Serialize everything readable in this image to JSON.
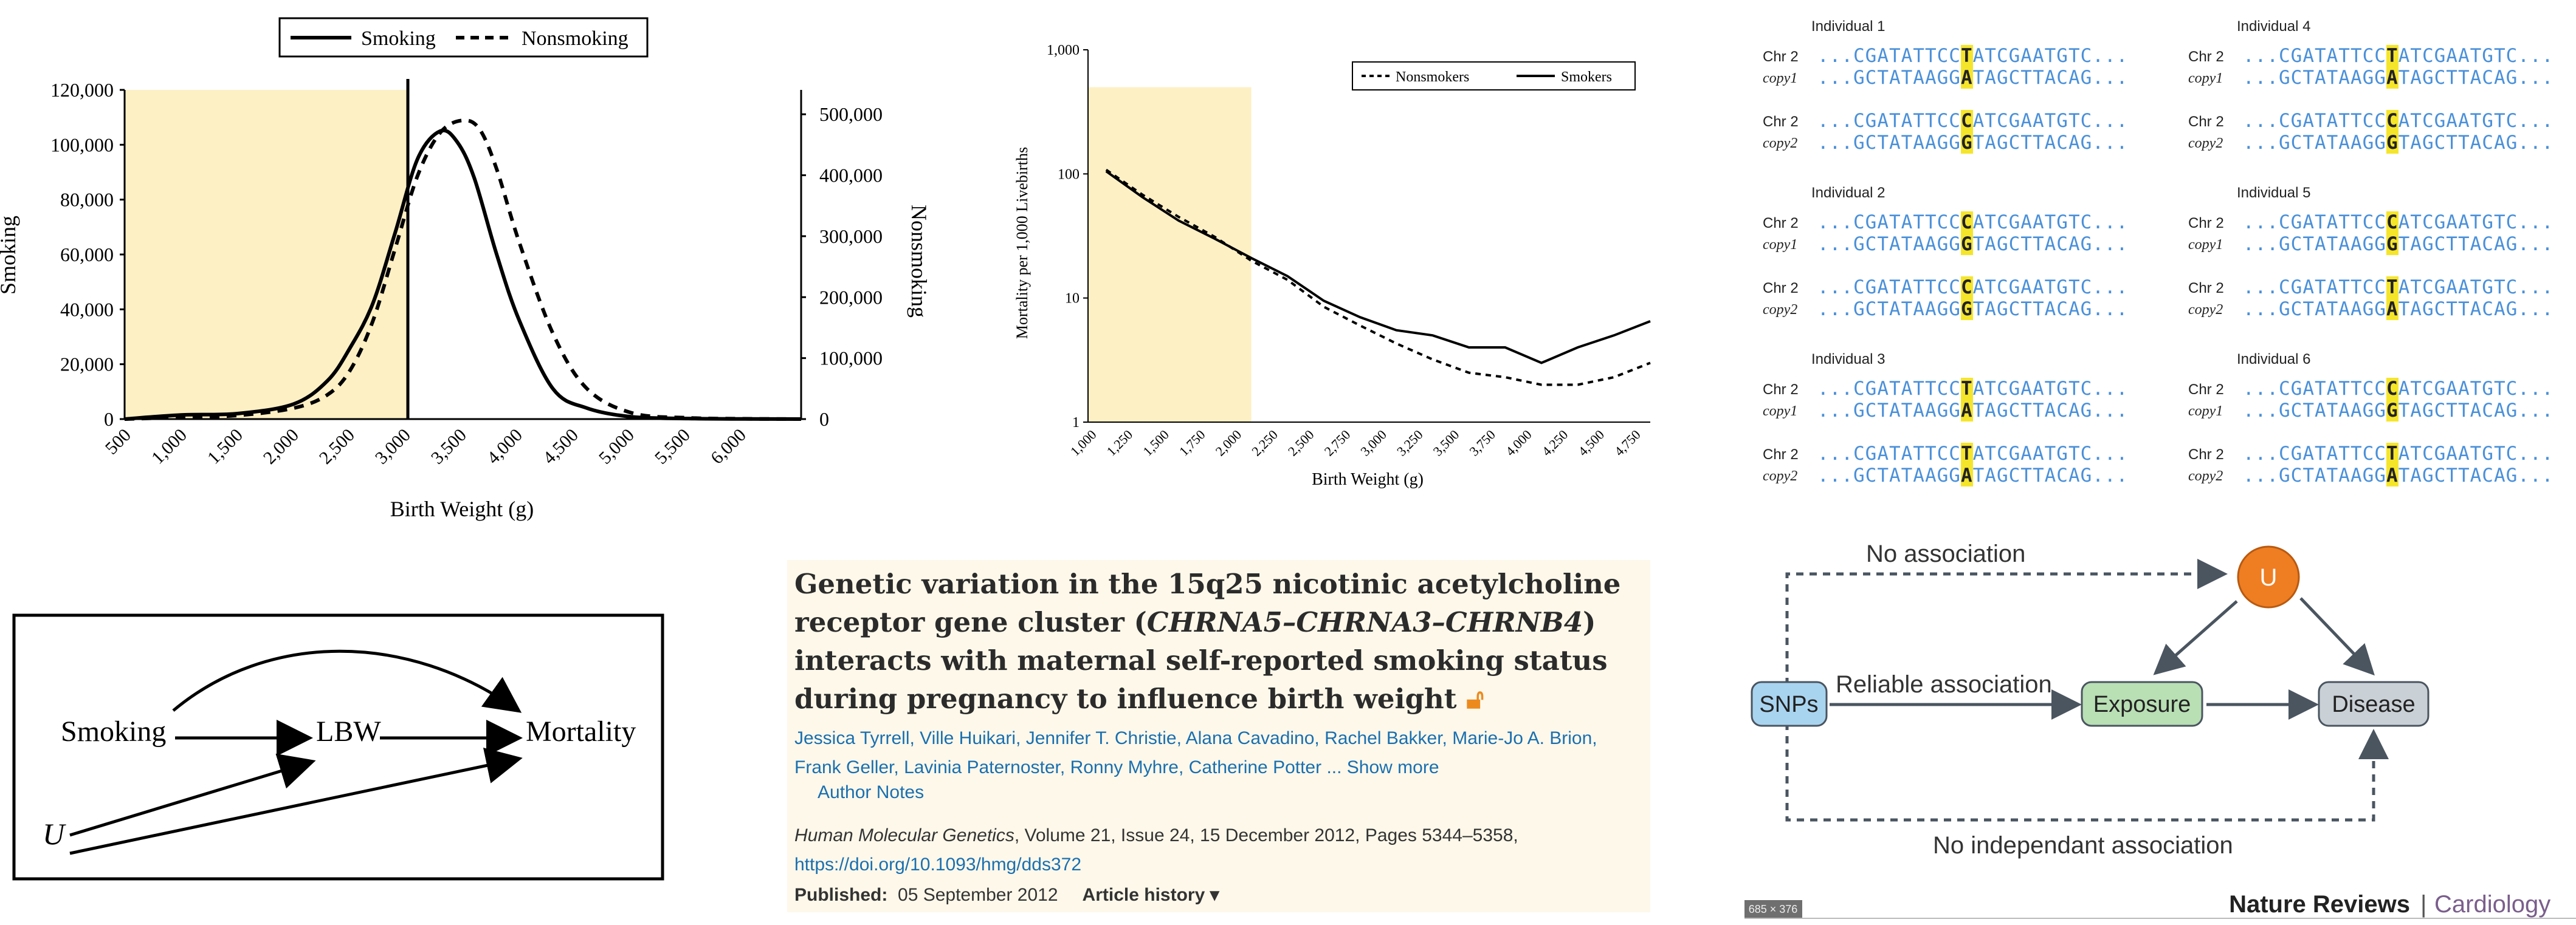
{
  "chart1": {
    "legend": [
      "Smoking",
      "Nonsmoking"
    ],
    "ylabel_left": "Smoking",
    "ylabel_right": "Nonsmoking",
    "xlabel": "Birth Weight (g)",
    "y_left_ticks": [
      "0",
      "20,000",
      "40,000",
      "60,000",
      "80,000",
      "100,000",
      "120,000"
    ],
    "y_right_ticks": [
      "0",
      "100,000",
      "200,000",
      "300,000",
      "400,000",
      "500,000"
    ],
    "x_ticks": [
      "500",
      "1,000",
      "1,500",
      "2,000",
      "2,500",
      "3,000",
      "3,500",
      "4,000",
      "4,500",
      "5,000",
      "5,500",
      "6,000"
    ]
  },
  "chart2": {
    "legend": [
      "Nonsmokers",
      "Smokers"
    ],
    "ylabel": "Mortality per 1,000 Livebirths",
    "xlabel": "Birth Weight (g)",
    "y_ticks": [
      "1",
      "10",
      "100",
      "1,000"
    ],
    "x_ticks": [
      "1,000",
      "1,250",
      "1,500",
      "1,750",
      "2,000",
      "2,250",
      "2,500",
      "2,750",
      "3,000",
      "3,250",
      "3,500",
      "3,750",
      "4,000",
      "4,250",
      "4,500",
      "4,750"
    ]
  },
  "chart_data": [
    {
      "type": "line",
      "title": "",
      "xlabel": "Birth Weight (g)",
      "ylabel": "Smoking",
      "ylabel_secondary": "Nonsmoking",
      "xlim": [
        500,
        6500
      ],
      "ylim": [
        0,
        120000
      ],
      "ylim_secondary": [
        0,
        540000
      ],
      "legend_position": "top",
      "shaded_region": [
        500,
        2500
      ],
      "vertical_line": 2500,
      "series": [
        {
          "name": "Smoking",
          "axis": "left",
          "style": "solid",
          "x": [
            500,
            1000,
            1500,
            2000,
            2300,
            2500,
            2700,
            2900,
            3100,
            3300,
            3450,
            3600,
            3800,
            4000,
            4300,
            4600,
            5000,
            5500,
            6000,
            6500
          ],
          "y": [
            0,
            1500,
            2000,
            5500,
            14000,
            26000,
            42000,
            68000,
            95000,
            105000,
            101000,
            88000,
            60000,
            36000,
            11000,
            4000,
            800,
            200,
            50,
            0
          ]
        },
        {
          "name": "Nonsmoking",
          "axis": "right",
          "style": "dashed",
          "x": [
            500,
            1000,
            1500,
            2000,
            2300,
            2500,
            2700,
            2900,
            3100,
            3300,
            3500,
            3650,
            3800,
            4000,
            4300,
            4600,
            5000,
            5500,
            6000,
            6500
          ],
          "y": [
            0,
            3000,
            6000,
            18000,
            40000,
            80000,
            160000,
            280000,
            400000,
            470000,
            490000,
            475000,
            410000,
            290000,
            140000,
            50000,
            10000,
            2000,
            500,
            0
          ]
        }
      ]
    },
    {
      "type": "line",
      "title": "",
      "xlabel": "Birth Weight (g)",
      "ylabel": "Mortality per 1,000 Livebirths",
      "y_scale": "log",
      "xlim": [
        1000,
        4875
      ],
      "ylim": [
        1,
        1000
      ],
      "legend_position": "top-right",
      "shaded_region": [
        1000,
        2000
      ],
      "series": [
        {
          "name": "Smokers",
          "style": "solid",
          "x": [
            1125,
            1375,
            1625,
            1875,
            2125,
            2375,
            2625,
            2875,
            3125,
            3375,
            3625,
            3875,
            4125,
            4375,
            4625,
            4875
          ],
          "y": [
            105,
            65,
            42,
            30,
            21,
            15,
            9.5,
            7,
            5.5,
            5,
            4,
            4,
            3,
            4,
            5,
            6.5
          ]
        },
        {
          "name": "Nonsmokers",
          "style": "dashed",
          "x": [
            1125,
            1375,
            1625,
            1875,
            2125,
            2375,
            2625,
            2875,
            3125,
            3375,
            3625,
            3875,
            4125,
            4375,
            4625,
            4875
          ],
          "y": [
            108,
            68,
            45,
            31,
            20,
            14,
            8.5,
            6,
            4.3,
            3.2,
            2.5,
            2.3,
            2,
            2,
            2.3,
            3
          ]
        }
      ]
    }
  ],
  "dna": {
    "individuals": [
      {
        "title": "Individual 1",
        "pairs": [
          {
            "chr": "Chr 2",
            "copy": "copy1",
            "top": [
              "...CGATATTCC",
              "T",
              "ATCGAATGTC..."
            ],
            "bot": [
              "...GCTATAAGG",
              "A",
              "TAGCTTACAG..."
            ]
          },
          {
            "chr": "Chr 2",
            "copy": "copy2",
            "top": [
              "...CGATATTCC",
              "C",
              "ATCGAATGTC..."
            ],
            "bot": [
              "...GCTATAAGG",
              "G",
              "TAGCTTACAG..."
            ]
          }
        ]
      },
      {
        "title": "Individual 2",
        "pairs": [
          {
            "chr": "Chr 2",
            "copy": "copy1",
            "top": [
              "...CGATATTCC",
              "C",
              "ATCGAATGTC..."
            ],
            "bot": [
              "...GCTATAAGG",
              "G",
              "TAGCTTACAG..."
            ]
          },
          {
            "chr": "Chr 2",
            "copy": "copy2",
            "top": [
              "...CGATATTCC",
              "C",
              "ATCGAATGTC..."
            ],
            "bot": [
              "...GCTATAAGG",
              "G",
              "TAGCTTACAG..."
            ]
          }
        ]
      },
      {
        "title": "Individual 3",
        "pairs": [
          {
            "chr": "Chr 2",
            "copy": "copy1",
            "top": [
              "...CGATATTCC",
              "T",
              "ATCGAATGTC..."
            ],
            "bot": [
              "...GCTATAAGG",
              "A",
              "TAGCTTACAG..."
            ]
          },
          {
            "chr": "Chr 2",
            "copy": "copy2",
            "top": [
              "...CGATATTCC",
              "T",
              "ATCGAATGTC..."
            ],
            "bot": [
              "...GCTATAAGG",
              "A",
              "TAGCTTACAG..."
            ]
          }
        ]
      },
      {
        "title": "Individual 4",
        "pairs": [
          {
            "chr": "Chr 2",
            "copy": "copy1",
            "top": [
              "...CGATATTCC",
              "T",
              "ATCGAATGTC..."
            ],
            "bot": [
              "...GCTATAAGG",
              "A",
              "TAGCTTACAG..."
            ]
          },
          {
            "chr": "Chr 2",
            "copy": "copy2",
            "top": [
              "...CGATATTCC",
              "C",
              "ATCGAATGTC..."
            ],
            "bot": [
              "...GCTATAAGG",
              "G",
              "TAGCTTACAG..."
            ]
          }
        ]
      },
      {
        "title": "Individual 5",
        "pairs": [
          {
            "chr": "Chr 2",
            "copy": "copy1",
            "top": [
              "...CGATATTCC",
              "C",
              "ATCGAATGTC..."
            ],
            "bot": [
              "...GCTATAAGG",
              "G",
              "TAGCTTACAG..."
            ]
          },
          {
            "chr": "Chr 2",
            "copy": "copy2",
            "top": [
              "...CGATATTCC",
              "T",
              "ATCGAATGTC..."
            ],
            "bot": [
              "...GCTATAAGG",
              "A",
              "TAGCTTACAG..."
            ]
          }
        ]
      },
      {
        "title": "Individual 6",
        "pairs": [
          {
            "chr": "Chr 2",
            "copy": "copy1",
            "top": [
              "...CGATATTCC",
              "C",
              "ATCGAATGTC..."
            ],
            "bot": [
              "...GCTATAAGG",
              "G",
              "TAGCTTACAG..."
            ]
          },
          {
            "chr": "Chr 2",
            "copy": "copy2",
            "top": [
              "...CGATATTCC",
              "T",
              "ATCGAATGTC..."
            ],
            "bot": [
              "...GCTATAAGG",
              "A",
              "TAGCTTACAG..."
            ]
          }
        ]
      }
    ]
  },
  "dag": {
    "smoking": "Smoking",
    "lbw": "LBW",
    "mortality": "Mortality",
    "u": "U"
  },
  "paper": {
    "title_part1": "Genetic variation in the 15q25 nicotinic acetylcholine receptor gene cluster (",
    "title_genes": "CHRNA5–CHRNA3–CHRNB4",
    "title_part2": ") interacts with maternal self-reported smoking status during pregnancy to influence birth weight",
    "open_access_icon": "open-access-icon",
    "authors": [
      "Jessica Tyrrell",
      "Ville Huikari",
      "Jennifer T. Christie",
      "Alana Cavadino",
      "Rachel Bakker",
      "Marie-Jo A. Brion",
      "Frank Geller",
      "Lavinia Paternoster",
      "Ronny Myhre",
      "Catherine Potter"
    ],
    "show_more": "... Show more",
    "author_notes": "Author Notes",
    "journal": "Human Molecular Genetics",
    "citation_rest": ", Volume 21, Issue 24, 15 December 2012, Pages 5344–5358, ",
    "doi": "https://doi.org/10.1093/hmg/dds372",
    "published_label": "Published:",
    "published_date": "05 September 2012",
    "article_history": "Article history ▾"
  },
  "mr": {
    "no_association": "No association",
    "reliable_association": "Reliable association",
    "no_independent": "No independant association",
    "snps": "SNPs",
    "exposure": "Exposure",
    "disease": "Disease",
    "u": "U",
    "journal": "Nature Reviews",
    "section": "Cardiology",
    "image_size": "685 × 376",
    "colors": {
      "snps": "#a9d4f0",
      "exposure": "#b9dfb4",
      "disease": "#c9d0d6",
      "u": "#ef7d22"
    }
  }
}
